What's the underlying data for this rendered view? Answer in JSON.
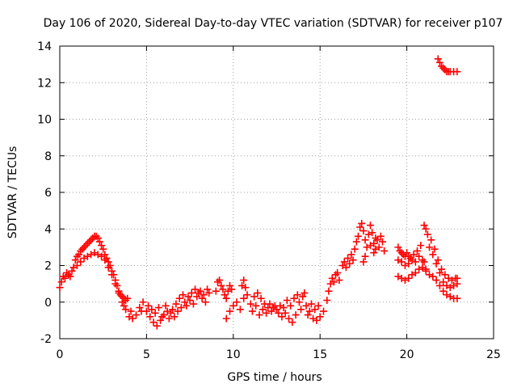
{
  "chart_data": {
    "type": "scatter",
    "title": "Day 106 of 2020, Sidereal Day-to-day VTEC variation (SDTVAR) for receiver p107",
    "xlabel": "GPS time / hours",
    "ylabel": "SDTVAR / TECUs",
    "xlim": [
      0,
      25
    ],
    "ylim": [
      -2,
      14
    ],
    "xticks": [
      0,
      5,
      10,
      15,
      20,
      25
    ],
    "yticks": [
      -2,
      0,
      2,
      4,
      6,
      8,
      10,
      12,
      14
    ],
    "xtick_labels": [
      "0",
      "5",
      "10",
      "15",
      "20",
      "25"
    ],
    "ytick_labels": [
      "-2",
      "0",
      "2",
      "4",
      "6",
      "8",
      "10",
      "12",
      "14"
    ],
    "grid": true,
    "marker": "plus",
    "color": "#ff0000",
    "series": [
      {
        "name": "SDTVAR",
        "points": [
          [
            0.0,
            0.8
          ],
          [
            0.1,
            1.1
          ],
          [
            0.2,
            1.4
          ],
          [
            0.3,
            1.3
          ],
          [
            0.4,
            1.6
          ],
          [
            0.5,
            1.5
          ],
          [
            0.6,
            1.4
          ],
          [
            0.7,
            1.7
          ],
          [
            0.8,
            1.9
          ],
          [
            0.9,
            2.3
          ],
          [
            1.0,
            2.5
          ],
          [
            1.1,
            2.6
          ],
          [
            1.2,
            2.8
          ],
          [
            1.3,
            2.9
          ],
          [
            1.4,
            3.0
          ],
          [
            1.5,
            3.1
          ],
          [
            1.6,
            3.2
          ],
          [
            1.7,
            3.3
          ],
          [
            1.8,
            3.4
          ],
          [
            1.9,
            3.5
          ],
          [
            2.0,
            3.6
          ],
          [
            2.1,
            3.6
          ],
          [
            2.2,
            3.5
          ],
          [
            2.3,
            3.3
          ],
          [
            2.4,
            3.1
          ],
          [
            2.5,
            2.9
          ],
          [
            2.6,
            2.6
          ],
          [
            2.7,
            2.4
          ],
          [
            2.8,
            2.2
          ],
          [
            2.9,
            2.0
          ],
          [
            3.0,
            1.7
          ],
          [
            3.1,
            1.5
          ],
          [
            3.2,
            1.2
          ],
          [
            3.3,
            0.9
          ],
          [
            3.4,
            0.6
          ],
          [
            3.5,
            0.4
          ],
          [
            3.6,
            0.3
          ],
          [
            3.7,
            0.2
          ],
          [
            3.8,
            0.1
          ],
          [
            3.9,
            0.2
          ],
          [
            1.0,
            2.0
          ],
          [
            1.2,
            2.2
          ],
          [
            1.4,
            2.4
          ],
          [
            1.6,
            2.5
          ],
          [
            1.8,
            2.6
          ],
          [
            2.0,
            2.7
          ],
          [
            2.2,
            2.6
          ],
          [
            2.4,
            2.5
          ],
          [
            2.6,
            2.3
          ],
          [
            2.8,
            1.9
          ],
          [
            3.0,
            1.5
          ],
          [
            3.2,
            1.0
          ],
          [
            3.4,
            0.5
          ],
          [
            3.6,
            0.0
          ],
          [
            3.8,
            -0.4
          ],
          [
            4.0,
            -0.8
          ],
          [
            4.2,
            -0.9
          ],
          [
            4.4,
            -0.7
          ],
          [
            3.7,
            -0.2
          ],
          [
            4.1,
            -0.5
          ],
          [
            4.6,
            -0.3
          ],
          [
            4.8,
            0.0
          ],
          [
            5.0,
            -0.5
          ],
          [
            5.2,
            -0.8
          ],
          [
            5.4,
            -1.1
          ],
          [
            5.6,
            -1.3
          ],
          [
            5.8,
            -1.0
          ],
          [
            6.0,
            -0.7
          ],
          [
            6.2,
            -0.5
          ],
          [
            6.4,
            -0.6
          ],
          [
            4.7,
            -0.5
          ],
          [
            5.1,
            -0.2
          ],
          [
            5.3,
            -0.4
          ],
          [
            5.5,
            -0.6
          ],
          [
            5.7,
            -0.3
          ],
          [
            5.9,
            -0.8
          ],
          [
            6.1,
            -0.2
          ],
          [
            6.3,
            -0.9
          ],
          [
            6.5,
            -0.4
          ],
          [
            6.7,
            -0.1
          ],
          [
            6.6,
            -0.8
          ],
          [
            6.8,
            -0.5
          ],
          [
            7.0,
            -0.3
          ],
          [
            7.2,
            0.0
          ],
          [
            7.4,
            0.3
          ],
          [
            7.6,
            0.5
          ],
          [
            7.8,
            0.7
          ],
          [
            8.0,
            0.5
          ],
          [
            8.2,
            0.2
          ],
          [
            8.4,
            0.0
          ],
          [
            6.9,
            0.2
          ],
          [
            7.1,
            0.4
          ],
          [
            7.3,
            -0.2
          ],
          [
            7.5,
            0.1
          ],
          [
            7.7,
            -0.1
          ],
          [
            7.9,
            0.3
          ],
          [
            8.1,
            0.6
          ],
          [
            8.3,
            0.4
          ],
          [
            8.5,
            0.7
          ],
          [
            8.6,
            0.5
          ],
          [
            9.0,
            0.6
          ],
          [
            9.1,
            1.1
          ],
          [
            9.2,
            1.2
          ],
          [
            9.3,
            0.9
          ],
          [
            9.4,
            0.7
          ],
          [
            9.5,
            0.4
          ],
          [
            9.6,
            0.2
          ],
          [
            9.7,
            0.6
          ],
          [
            9.8,
            0.9
          ],
          [
            9.9,
            0.7
          ],
          [
            9.6,
            -0.9
          ],
          [
            9.8,
            -0.5
          ],
          [
            10.0,
            -0.2
          ],
          [
            10.2,
            0.0
          ],
          [
            10.5,
            0.9
          ],
          [
            10.6,
            1.2
          ],
          [
            10.7,
            0.8
          ],
          [
            10.4,
            -0.4
          ],
          [
            10.6,
            0.2
          ],
          [
            10.8,
            0.4
          ],
          [
            11.0,
            -0.1
          ],
          [
            11.2,
            0.3
          ],
          [
            11.4,
            0.5
          ],
          [
            11.6,
            0.2
          ],
          [
            11.8,
            -0.1
          ],
          [
            12.0,
            -0.3
          ],
          [
            12.2,
            -0.5
          ],
          [
            12.4,
            -0.2
          ],
          [
            12.6,
            -0.6
          ],
          [
            12.8,
            -0.8
          ],
          [
            11.1,
            -0.5
          ],
          [
            11.3,
            -0.2
          ],
          [
            11.5,
            -0.7
          ],
          [
            11.7,
            -0.4
          ],
          [
            11.9,
            -0.6
          ],
          [
            12.1,
            -0.1
          ],
          [
            12.3,
            -0.3
          ],
          [
            12.5,
            -0.4
          ],
          [
            12.7,
            -0.2
          ],
          [
            12.9,
            -0.3
          ],
          [
            13.0,
            -0.6
          ],
          [
            13.2,
            -0.9
          ],
          [
            13.4,
            -1.1
          ],
          [
            13.6,
            -0.7
          ],
          [
            13.8,
            0.0
          ],
          [
            14.0,
            0.3
          ],
          [
            14.2,
            -0.2
          ],
          [
            14.4,
            -0.5
          ],
          [
            14.6,
            -0.9
          ],
          [
            14.8,
            -1.0
          ],
          [
            13.1,
            0.1
          ],
          [
            13.3,
            -0.2
          ],
          [
            13.5,
            0.2
          ],
          [
            13.7,
            0.4
          ],
          [
            13.9,
            -0.4
          ],
          [
            14.1,
            0.5
          ],
          [
            14.3,
            -0.7
          ],
          [
            14.5,
            -0.1
          ],
          [
            14.7,
            -0.4
          ],
          [
            14.9,
            -0.2
          ],
          [
            15.0,
            -0.8
          ],
          [
            15.2,
            -0.5
          ],
          [
            15.4,
            0.1
          ],
          [
            15.5,
            0.6
          ],
          [
            15.6,
            1.0
          ],
          [
            15.7,
            1.3
          ],
          [
            15.8,
            1.1
          ],
          [
            15.9,
            1.5
          ],
          [
            16.0,
            1.6
          ],
          [
            16.1,
            1.2
          ],
          [
            16.3,
            2.0
          ],
          [
            16.4,
            2.2
          ],
          [
            16.5,
            1.9
          ],
          [
            16.6,
            2.4
          ],
          [
            16.7,
            2.1
          ],
          [
            16.8,
            2.6
          ],
          [
            16.9,
            2.3
          ],
          [
            17.0,
            2.9
          ],
          [
            17.1,
            3.3
          ],
          [
            17.2,
            3.6
          ],
          [
            17.3,
            4.1
          ],
          [
            17.4,
            4.3
          ],
          [
            17.5,
            3.9
          ],
          [
            17.6,
            3.4
          ],
          [
            17.7,
            3.0
          ],
          [
            17.8,
            3.7
          ],
          [
            17.9,
            4.2
          ],
          [
            18.0,
            3.8
          ],
          [
            18.1,
            3.2
          ],
          [
            18.2,
            2.9
          ],
          [
            17.6,
            2.5
          ],
          [
            17.9,
            3.1
          ],
          [
            18.1,
            2.7
          ],
          [
            18.3,
            3.4
          ],
          [
            18.4,
            3.0
          ],
          [
            18.5,
            3.6
          ],
          [
            18.6,
            3.3
          ],
          [
            18.7,
            2.8
          ],
          [
            17.5,
            2.2
          ],
          [
            18.2,
            3.5
          ],
          [
            19.5,
            3.0
          ],
          [
            19.6,
            2.8
          ],
          [
            19.7,
            2.7
          ],
          [
            19.8,
            2.6
          ],
          [
            19.9,
            2.5
          ],
          [
            20.0,
            2.7
          ],
          [
            20.1,
            2.5
          ],
          [
            20.2,
            2.4
          ],
          [
            20.4,
            2.6
          ],
          [
            20.6,
            2.8
          ],
          [
            19.5,
            2.3
          ],
          [
            19.7,
            2.2
          ],
          [
            19.9,
            2.0
          ],
          [
            20.1,
            2.1
          ],
          [
            20.3,
            2.3
          ],
          [
            20.5,
            2.2
          ],
          [
            20.7,
            2.5
          ],
          [
            20.9,
            2.3
          ],
          [
            21.0,
            2.2
          ],
          [
            21.1,
            1.8
          ],
          [
            19.5,
            1.4
          ],
          [
            19.7,
            1.3
          ],
          [
            19.9,
            1.2
          ],
          [
            20.1,
            1.3
          ],
          [
            20.3,
            1.5
          ],
          [
            20.5,
            1.6
          ],
          [
            20.7,
            1.8
          ],
          [
            20.9,
            1.9
          ],
          [
            21.1,
            1.7
          ],
          [
            21.3,
            1.5
          ],
          [
            20.8,
            3.1
          ],
          [
            21.0,
            4.2
          ],
          [
            21.1,
            4.0
          ],
          [
            21.2,
            3.7
          ],
          [
            21.4,
            3.4
          ],
          [
            21.6,
            2.9
          ],
          [
            21.8,
            2.3
          ],
          [
            22.0,
            1.8
          ],
          [
            22.2,
            1.5
          ],
          [
            22.4,
            1.3
          ],
          [
            21.3,
            3.0
          ],
          [
            21.5,
            2.6
          ],
          [
            21.7,
            2.1
          ],
          [
            21.9,
            1.6
          ],
          [
            22.1,
            1.1
          ],
          [
            22.3,
            0.9
          ],
          [
            22.5,
            0.8
          ],
          [
            22.7,
            0.9
          ],
          [
            22.9,
            1.0
          ],
          [
            22.8,
            1.3
          ],
          [
            21.5,
            1.4
          ],
          [
            21.7,
            1.2
          ],
          [
            21.9,
            0.9
          ],
          [
            22.1,
            0.6
          ],
          [
            22.3,
            0.4
          ],
          [
            22.5,
            0.3
          ],
          [
            22.7,
            0.2
          ],
          [
            22.9,
            0.2
          ],
          [
            22.6,
            1.2
          ],
          [
            22.9,
            1.3
          ],
          [
            21.8,
            13.3
          ],
          [
            21.9,
            13.1
          ],
          [
            22.0,
            12.9
          ],
          [
            22.1,
            12.8
          ],
          [
            22.2,
            12.7
          ],
          [
            22.3,
            12.6
          ],
          [
            22.4,
            12.6
          ],
          [
            22.5,
            12.6
          ],
          [
            22.7,
            12.6
          ],
          [
            22.9,
            12.6
          ]
        ]
      }
    ]
  }
}
